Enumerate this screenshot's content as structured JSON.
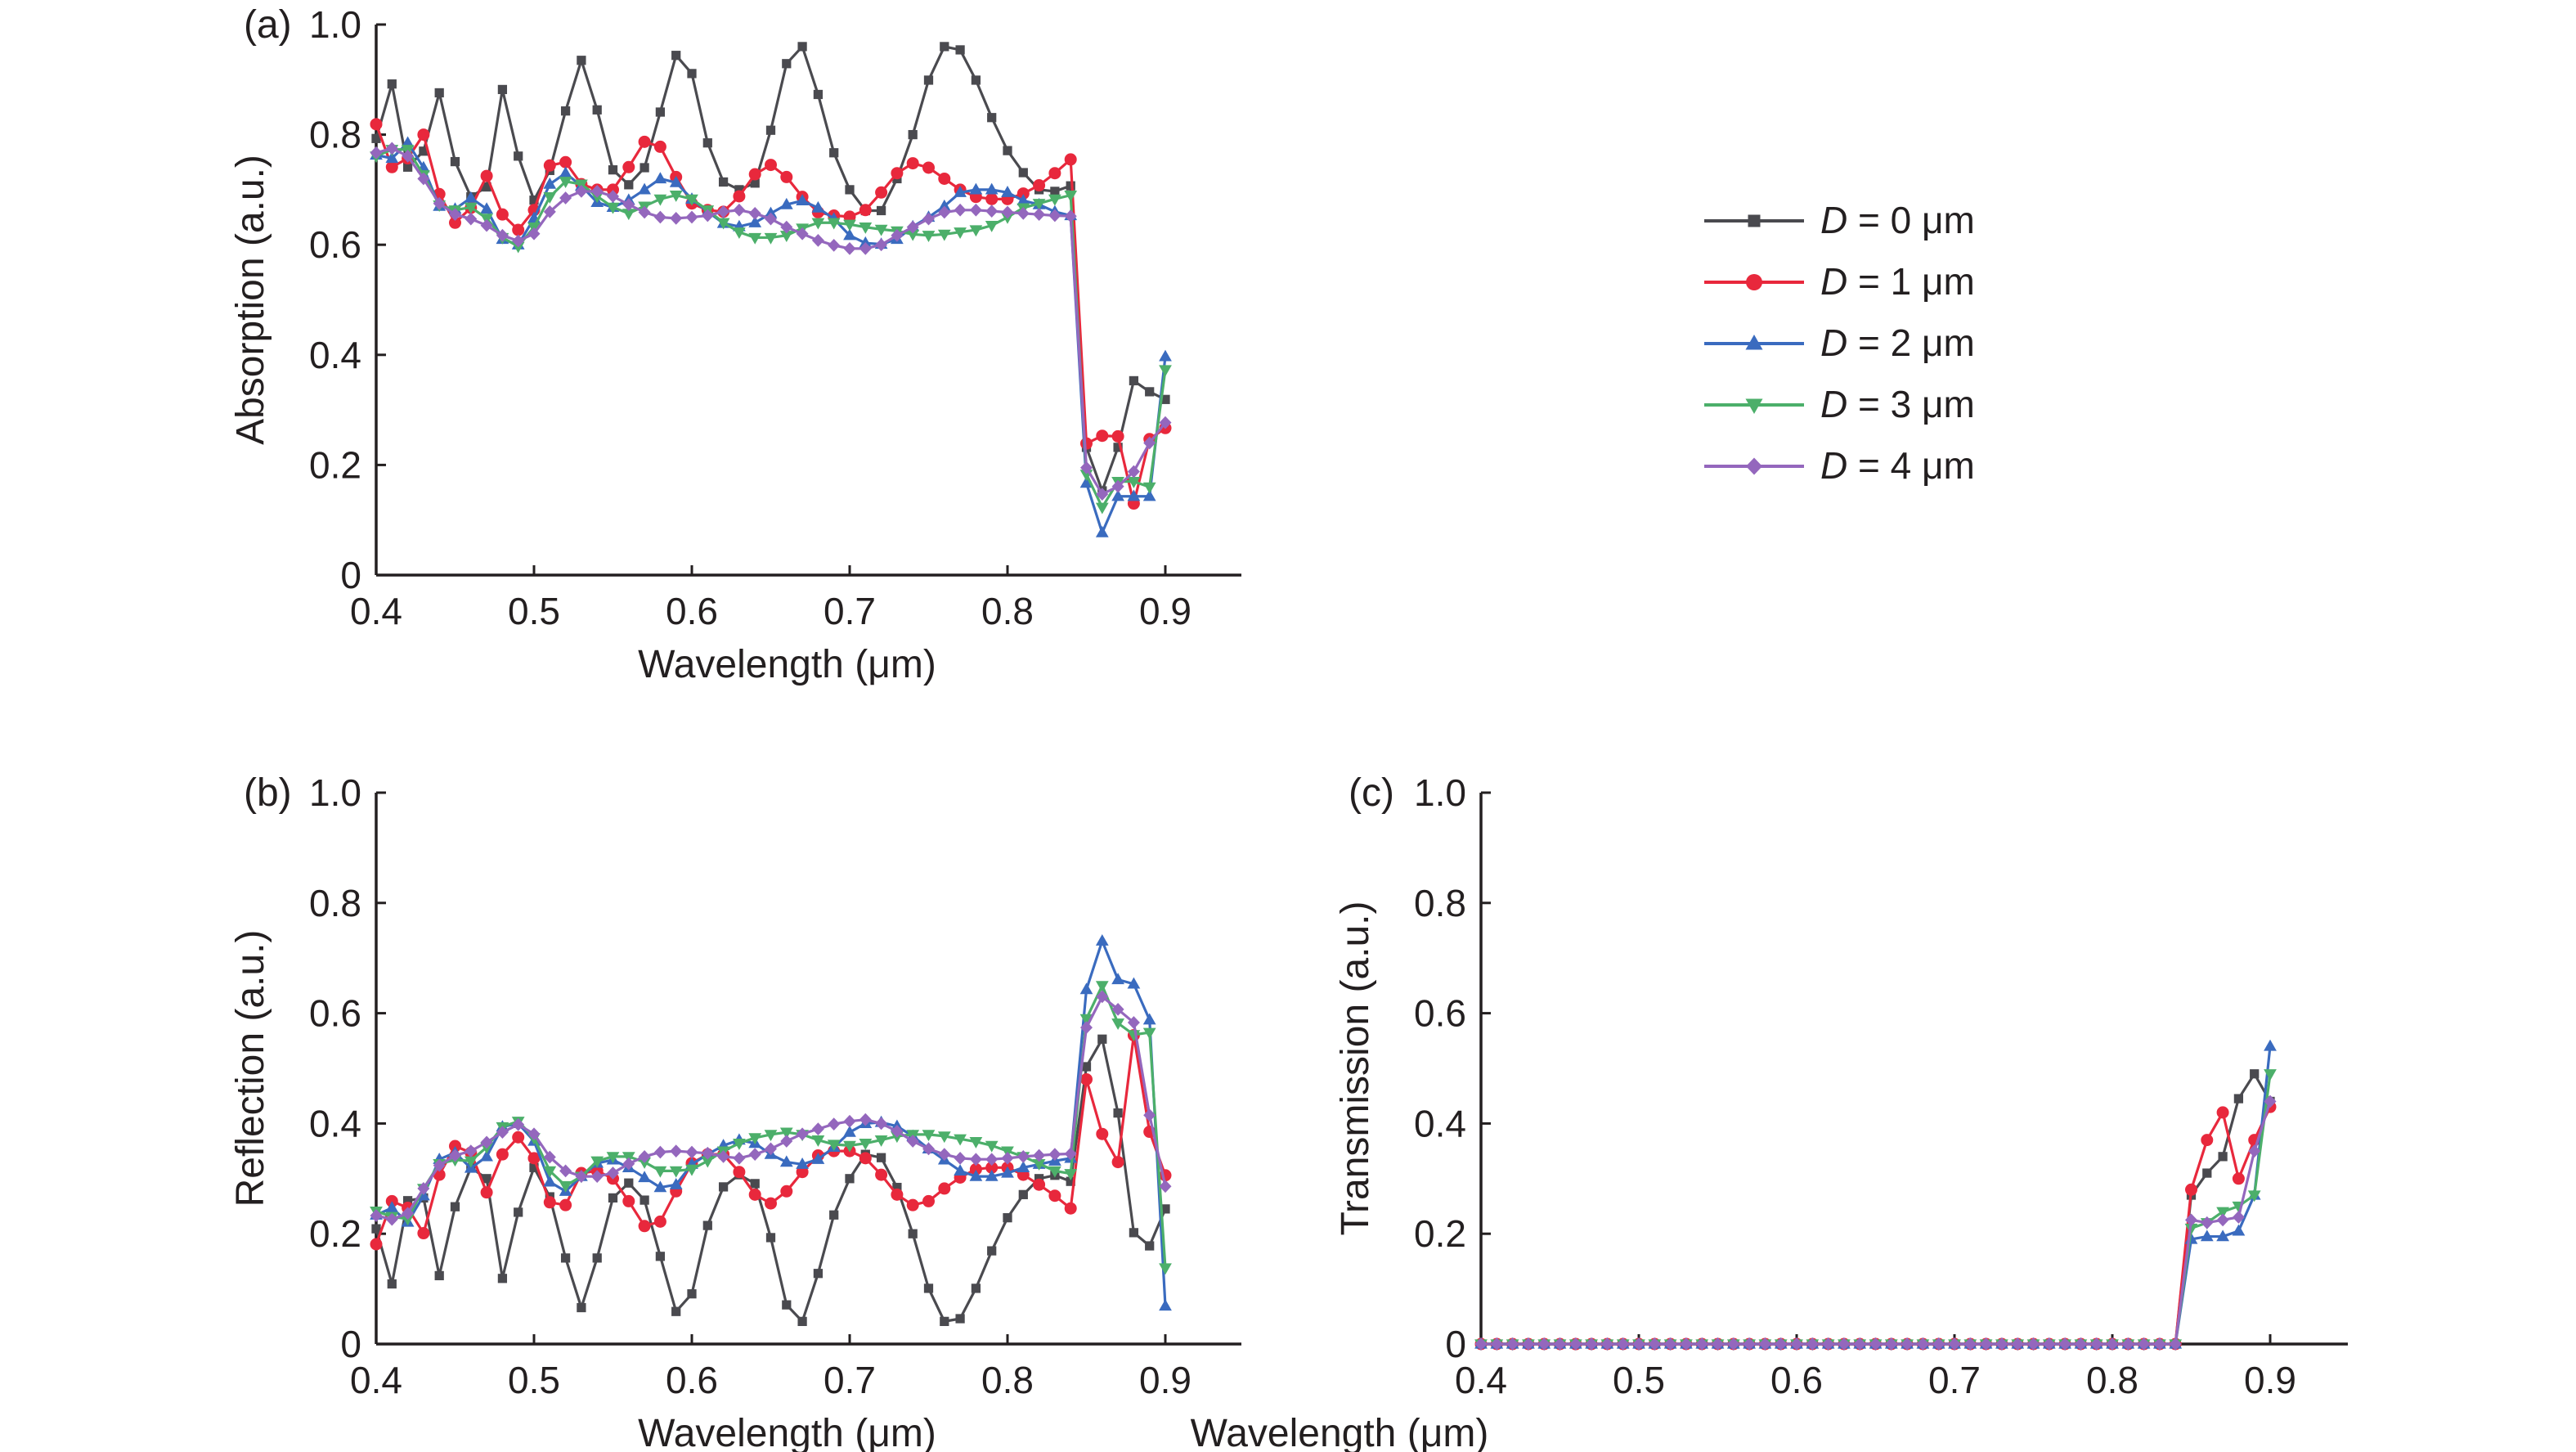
{
  "legend": {
    "placement": "right of panel (a)",
    "items": [
      {
        "label": "D = 0 μm",
        "color": "#4a4a4f",
        "marker": "square"
      },
      {
        "label": "D = 1 μm",
        "color": "#e8283c",
        "marker": "circle"
      },
      {
        "label": "D = 2 μm",
        "color": "#3a6bbf",
        "marker": "triangle-up"
      },
      {
        "label": "D = 3 μm",
        "color": "#4caf6a",
        "marker": "triangle-down"
      },
      {
        "label": "D = 4 μm",
        "color": "#9467bd",
        "marker": "diamond"
      }
    ]
  },
  "chart_data": [
    {
      "type": "line",
      "panel_label": "(a)",
      "xlabel": "Wavelength (μm)",
      "ylabel": "Absorption (a.u.)",
      "xlim": [
        0.4,
        0.95
      ],
      "ylim": [
        0,
        1.0
      ],
      "xticks": [
        "0.4",
        "0.5",
        "0.6",
        "0.7",
        "0.8",
        "0.9"
      ],
      "yticks": [
        "0",
        "0.2",
        "0.4",
        "0.6",
        "0.8",
        "1.0"
      ],
      "grid": false,
      "series": [
        {
          "name": "D = 0 μm",
          "values": [
            0.793,
            0.892,
            0.741,
            0.77,
            0.876,
            0.751,
            0.687,
            0.705,
            0.882,
            0.761,
            0.681,
            0.735,
            0.843,
            0.935,
            0.845,
            0.736,
            0.709,
            0.74,
            0.841,
            0.944,
            0.911,
            0.785,
            0.714,
            0.7,
            0.712,
            0.808,
            0.929,
            0.96,
            0.873,
            0.767,
            0.7,
            0.662,
            0.662,
            0.72,
            0.8,
            0.899,
            0.96,
            0.954,
            0.899,
            0.831,
            0.771,
            0.731,
            0.7,
            0.697,
            0.707,
            0.232,
            0.153,
            0.232,
            0.353,
            0.333,
            0.319
          ]
        },
        {
          "name": "D = 1 μm",
          "values": [
            0.819,
            0.741,
            0.757,
            0.8,
            0.692,
            0.64,
            0.667,
            0.725,
            0.655,
            0.627,
            0.663,
            0.744,
            0.75,
            0.71,
            0.7,
            0.7,
            0.741,
            0.787,
            0.778,
            0.723,
            0.675,
            0.663,
            0.66,
            0.688,
            0.728,
            0.745,
            0.723,
            0.687,
            0.659,
            0.653,
            0.651,
            0.663,
            0.695,
            0.73,
            0.748,
            0.74,
            0.72,
            0.7,
            0.687,
            0.683,
            0.683,
            0.693,
            0.708,
            0.73,
            0.755,
            0.239,
            0.253,
            0.252,
            0.13,
            0.247,
            0.267
          ]
        },
        {
          "name": "D = 2 μm",
          "values": [
            0.763,
            0.757,
            0.785,
            0.74,
            0.67,
            0.665,
            0.685,
            0.665,
            0.61,
            0.6,
            0.648,
            0.71,
            0.73,
            0.707,
            0.677,
            0.668,
            0.681,
            0.7,
            0.72,
            0.713,
            0.683,
            0.66,
            0.639,
            0.633,
            0.64,
            0.657,
            0.673,
            0.68,
            0.667,
            0.647,
            0.617,
            0.603,
            0.601,
            0.61,
            0.633,
            0.65,
            0.67,
            0.695,
            0.7,
            0.7,
            0.695,
            0.68,
            0.673,
            0.66,
            0.653,
            0.167,
            0.077,
            0.143,
            0.143,
            0.143,
            0.397
          ]
        },
        {
          "name": "D = 3 μm",
          "values": [
            0.761,
            0.773,
            0.773,
            0.727,
            0.672,
            0.663,
            0.668,
            0.648,
            0.613,
            0.597,
            0.632,
            0.687,
            0.715,
            0.71,
            0.688,
            0.668,
            0.657,
            0.67,
            0.683,
            0.69,
            0.683,
            0.663,
            0.64,
            0.623,
            0.613,
            0.613,
            0.617,
            0.63,
            0.64,
            0.64,
            0.637,
            0.632,
            0.628,
            0.625,
            0.619,
            0.617,
            0.619,
            0.623,
            0.627,
            0.635,
            0.65,
            0.667,
            0.675,
            0.683,
            0.69,
            0.183,
            0.123,
            0.17,
            0.17,
            0.16,
            0.373
          ]
        },
        {
          "name": "D = 4 μm",
          "values": [
            0.767,
            0.775,
            0.761,
            0.72,
            0.675,
            0.655,
            0.647,
            0.635,
            0.617,
            0.607,
            0.62,
            0.66,
            0.685,
            0.697,
            0.697,
            0.688,
            0.673,
            0.659,
            0.65,
            0.648,
            0.65,
            0.653,
            0.66,
            0.663,
            0.657,
            0.647,
            0.632,
            0.62,
            0.608,
            0.599,
            0.593,
            0.593,
            0.6,
            0.617,
            0.632,
            0.647,
            0.659,
            0.663,
            0.663,
            0.661,
            0.659,
            0.657,
            0.655,
            0.653,
            0.652,
            0.195,
            0.147,
            0.161,
            0.188,
            0.24,
            0.277
          ]
        }
      ],
      "x": [
        0.4,
        0.41,
        0.42,
        0.43,
        0.44,
        0.45,
        0.46,
        0.47,
        0.48,
        0.49,
        0.5,
        0.51,
        0.52,
        0.53,
        0.54,
        0.55,
        0.56,
        0.57,
        0.58,
        0.59,
        0.6,
        0.61,
        0.62,
        0.63,
        0.64,
        0.65,
        0.66,
        0.67,
        0.68,
        0.69,
        0.7,
        0.71,
        0.72,
        0.73,
        0.74,
        0.75,
        0.76,
        0.77,
        0.78,
        0.79,
        0.8,
        0.81,
        0.82,
        0.83,
        0.84,
        0.85,
        0.86,
        0.87,
        0.88,
        0.89,
        0.9
      ]
    },
    {
      "type": "line",
      "panel_label": "(b)",
      "xlabel": "Wavelength (μm)",
      "ylabel": "Reflection (a.u.)",
      "xlim": [
        0.4,
        0.95
      ],
      "ylim": [
        0,
        1.0
      ],
      "xticks": [
        "0.4",
        "0.5",
        "0.6",
        "0.7",
        "0.8",
        "0.9"
      ],
      "yticks": [
        "0",
        "0.2",
        "0.4",
        "0.6",
        "0.8",
        "1.0"
      ],
      "grid": false,
      "series": [
        {
          "name": "D = 0 μm",
          "values": [
            0.209,
            0.109,
            0.26,
            0.265,
            0.124,
            0.249,
            0.32,
            0.3,
            0.119,
            0.239,
            0.32,
            0.267,
            0.156,
            0.066,
            0.156,
            0.265,
            0.292,
            0.261,
            0.159,
            0.059,
            0.091,
            0.215,
            0.285,
            0.307,
            0.291,
            0.193,
            0.071,
            0.041,
            0.128,
            0.234,
            0.3,
            0.344,
            0.338,
            0.284,
            0.2,
            0.101,
            0.041,
            0.046,
            0.101,
            0.169,
            0.229,
            0.271,
            0.3,
            0.306,
            0.295,
            0.503,
            0.553,
            0.419,
            0.202,
            0.178,
            0.245
          ]
        },
        {
          "name": "D = 1 μm",
          "values": [
            0.181,
            0.259,
            0.247,
            0.201,
            0.307,
            0.359,
            0.347,
            0.275,
            0.344,
            0.375,
            0.337,
            0.257,
            0.252,
            0.31,
            0.314,
            0.3,
            0.259,
            0.214,
            0.222,
            0.277,
            0.328,
            0.344,
            0.344,
            0.312,
            0.271,
            0.255,
            0.277,
            0.312,
            0.342,
            0.35,
            0.35,
            0.337,
            0.307,
            0.271,
            0.252,
            0.259,
            0.282,
            0.302,
            0.317,
            0.32,
            0.32,
            0.307,
            0.289,
            0.269,
            0.246,
            0.48,
            0.381,
            0.33,
            0.56,
            0.385,
            0.306
          ]
        },
        {
          "name": "D = 2 μm",
          "values": [
            0.234,
            0.247,
            0.221,
            0.269,
            0.335,
            0.347,
            0.319,
            0.34,
            0.394,
            0.4,
            0.368,
            0.294,
            0.277,
            0.304,
            0.328,
            0.334,
            0.32,
            0.302,
            0.284,
            0.289,
            0.326,
            0.344,
            0.36,
            0.37,
            0.364,
            0.344,
            0.33,
            0.326,
            0.335,
            0.357,
            0.384,
            0.4,
            0.402,
            0.395,
            0.377,
            0.354,
            0.334,
            0.314,
            0.304,
            0.304,
            0.31,
            0.32,
            0.326,
            0.332,
            0.337,
            0.643,
            0.731,
            0.661,
            0.653,
            0.588,
            0.069
          ]
        },
        {
          "name": "D = 3 μm",
          "values": [
            0.241,
            0.231,
            0.227,
            0.282,
            0.327,
            0.334,
            0.332,
            0.357,
            0.394,
            0.404,
            0.374,
            0.314,
            0.287,
            0.304,
            0.332,
            0.34,
            0.34,
            0.33,
            0.314,
            0.314,
            0.317,
            0.332,
            0.35,
            0.364,
            0.374,
            0.38,
            0.384,
            0.38,
            0.37,
            0.362,
            0.36,
            0.364,
            0.37,
            0.377,
            0.38,
            0.38,
            0.377,
            0.372,
            0.367,
            0.36,
            0.35,
            0.34,
            0.327,
            0.314,
            0.309,
            0.59,
            0.65,
            0.582,
            0.561,
            0.565,
            0.138
          ]
        },
        {
          "name": "D = 4 μm",
          "values": [
            0.233,
            0.226,
            0.237,
            0.282,
            0.324,
            0.342,
            0.35,
            0.366,
            0.384,
            0.398,
            0.381,
            0.339,
            0.314,
            0.304,
            0.304,
            0.31,
            0.327,
            0.34,
            0.348,
            0.35,
            0.348,
            0.346,
            0.34,
            0.337,
            0.344,
            0.354,
            0.368,
            0.381,
            0.39,
            0.399,
            0.404,
            0.407,
            0.4,
            0.386,
            0.368,
            0.354,
            0.344,
            0.337,
            0.335,
            0.335,
            0.337,
            0.34,
            0.342,
            0.344,
            0.345,
            0.574,
            0.63,
            0.607,
            0.583,
            0.415,
            0.286
          ]
        }
      ],
      "x": [
        0.4,
        0.41,
        0.42,
        0.43,
        0.44,
        0.45,
        0.46,
        0.47,
        0.48,
        0.49,
        0.5,
        0.51,
        0.52,
        0.53,
        0.54,
        0.55,
        0.56,
        0.57,
        0.58,
        0.59,
        0.6,
        0.61,
        0.62,
        0.63,
        0.64,
        0.65,
        0.66,
        0.67,
        0.68,
        0.69,
        0.7,
        0.71,
        0.72,
        0.73,
        0.74,
        0.75,
        0.76,
        0.77,
        0.78,
        0.79,
        0.8,
        0.81,
        0.82,
        0.83,
        0.84,
        0.85,
        0.86,
        0.87,
        0.88,
        0.89,
        0.9
      ]
    },
    {
      "type": "line",
      "panel_label": "(c)",
      "xlabel": "Wavelength (μm)",
      "ylabel": "Transmission (a.u.)",
      "xlim": [
        0.4,
        0.95
      ],
      "ylim": [
        0,
        1.0
      ],
      "xticks": [
        "0.4",
        "0.5",
        "0.6",
        "0.7",
        "0.8",
        "0.9"
      ],
      "yticks": [
        "0",
        "0.2",
        "0.4",
        "0.6",
        "0.8",
        "1.0"
      ],
      "grid": false,
      "series": [
        {
          "name": "D = 0 μm",
          "values": [
            0,
            0,
            0,
            0,
            0,
            0,
            0,
            0,
            0,
            0,
            0,
            0,
            0,
            0,
            0,
            0,
            0,
            0,
            0,
            0,
            0,
            0,
            0,
            0,
            0,
            0,
            0,
            0,
            0,
            0,
            0,
            0,
            0,
            0,
            0,
            0,
            0,
            0,
            0,
            0,
            0,
            0,
            0,
            0,
            0,
            0.27,
            0.31,
            0.34,
            0.445,
            0.49,
            0.44
          ]
        },
        {
          "name": "D = 1 μm",
          "values": [
            0,
            0,
            0,
            0,
            0,
            0,
            0,
            0,
            0,
            0,
            0,
            0,
            0,
            0,
            0,
            0,
            0,
            0,
            0,
            0,
            0,
            0,
            0,
            0,
            0,
            0,
            0,
            0,
            0,
            0,
            0,
            0,
            0,
            0,
            0,
            0,
            0,
            0,
            0,
            0,
            0,
            0,
            0,
            0,
            0,
            0.28,
            0.37,
            0.42,
            0.3,
            0.37,
            0.43
          ]
        },
        {
          "name": "D = 2 μm",
          "values": [
            0,
            0,
            0,
            0,
            0,
            0,
            0,
            0,
            0,
            0,
            0,
            0,
            0,
            0,
            0,
            0,
            0,
            0,
            0,
            0,
            0,
            0,
            0,
            0,
            0,
            0,
            0,
            0,
            0,
            0,
            0,
            0,
            0,
            0,
            0,
            0,
            0,
            0,
            0,
            0,
            0,
            0,
            0,
            0,
            0,
            0.19,
            0.195,
            0.195,
            0.205,
            0.27,
            0.54
          ]
        },
        {
          "name": "D = 3 μm",
          "values": [
            0,
            0,
            0,
            0,
            0,
            0,
            0,
            0,
            0,
            0,
            0,
            0,
            0,
            0,
            0,
            0,
            0,
            0,
            0,
            0,
            0,
            0,
            0,
            0,
            0,
            0,
            0,
            0,
            0,
            0,
            0,
            0,
            0,
            0,
            0,
            0,
            0,
            0,
            0,
            0,
            0,
            0,
            0,
            0,
            0,
            0.21,
            0.22,
            0.24,
            0.25,
            0.27,
            0.49
          ]
        },
        {
          "name": "D = 4 μm",
          "values": [
            0,
            0,
            0,
            0,
            0,
            0,
            0,
            0,
            0,
            0,
            0,
            0,
            0,
            0,
            0,
            0,
            0,
            0,
            0,
            0,
            0,
            0,
            0,
            0,
            0,
            0,
            0,
            0,
            0,
            0,
            0,
            0,
            0,
            0,
            0,
            0,
            0,
            0,
            0,
            0,
            0,
            0,
            0,
            0,
            0,
            0.225,
            0.22,
            0.225,
            0.23,
            0.35,
            0.44
          ]
        }
      ],
      "x": [
        0.4,
        0.41,
        0.42,
        0.43,
        0.44,
        0.45,
        0.46,
        0.47,
        0.48,
        0.49,
        0.5,
        0.51,
        0.52,
        0.53,
        0.54,
        0.55,
        0.56,
        0.57,
        0.58,
        0.59,
        0.6,
        0.61,
        0.62,
        0.63,
        0.64,
        0.65,
        0.66,
        0.67,
        0.68,
        0.69,
        0.7,
        0.71,
        0.72,
        0.73,
        0.74,
        0.75,
        0.76,
        0.77,
        0.78,
        0.79,
        0.8,
        0.81,
        0.82,
        0.83,
        0.84,
        0.85,
        0.86,
        0.87,
        0.88,
        0.89,
        0.9
      ]
    }
  ]
}
